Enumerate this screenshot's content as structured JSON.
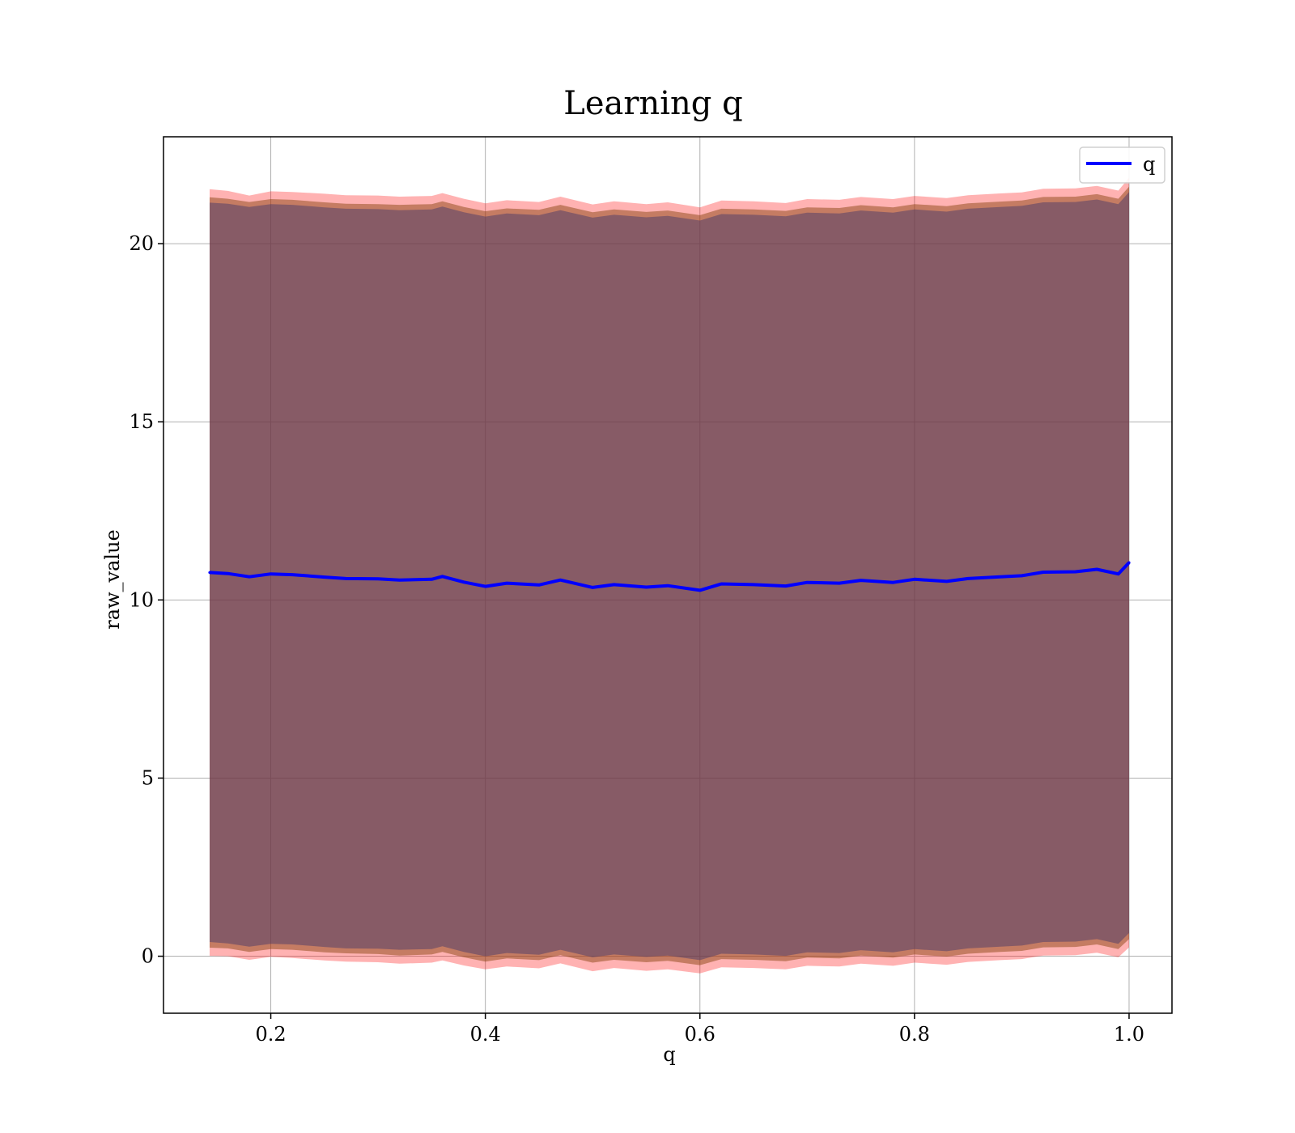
{
  "chart_data": {
    "type": "area",
    "title": "Learning q",
    "xlabel": "q",
    "ylabel": "raw_value",
    "xlim": [
      0.1,
      1.04
    ],
    "ylim": [
      -1.6,
      23.0
    ],
    "x_ticks": [
      0.2,
      0.4,
      0.6,
      0.8,
      1.0
    ],
    "x_tick_labels": [
      "0.2",
      "0.4",
      "0.6",
      "0.8",
      "1.0"
    ],
    "y_ticks": [
      0,
      5,
      10,
      15,
      20
    ],
    "y_tick_labels": [
      "0",
      "5",
      "10",
      "15",
      "20"
    ],
    "grid": true,
    "legend": {
      "position": "top-right",
      "entries": [
        "q"
      ]
    },
    "x": [
      0.143,
      0.16,
      0.18,
      0.2,
      0.22,
      0.25,
      0.27,
      0.3,
      0.32,
      0.35,
      0.36,
      0.38,
      0.4,
      0.42,
      0.45,
      0.47,
      0.5,
      0.52,
      0.55,
      0.57,
      0.6,
      0.62,
      0.65,
      0.68,
      0.7,
      0.73,
      0.75,
      0.78,
      0.8,
      0.83,
      0.85,
      0.88,
      0.9,
      0.92,
      0.95,
      0.97,
      0.99,
      1.0
    ],
    "series": [
      {
        "name": "q",
        "color": "#0000ff",
        "values": [
          10.77,
          10.74,
          10.65,
          10.73,
          10.71,
          10.64,
          10.6,
          10.59,
          10.56,
          10.58,
          10.66,
          10.5,
          10.38,
          10.47,
          10.42,
          10.56,
          10.35,
          10.43,
          10.36,
          10.4,
          10.27,
          10.45,
          10.43,
          10.39,
          10.49,
          10.47,
          10.55,
          10.49,
          10.58,
          10.52,
          10.6,
          10.65,
          10.68,
          10.78,
          10.79,
          10.86,
          10.73,
          11.05
        ]
      }
    ],
    "bands": [
      {
        "color": "#ff0000",
        "opacity": 0.3,
        "lower": [
          0.01,
          0.0,
          -0.1,
          -0.02,
          -0.05,
          -0.12,
          -0.15,
          -0.17,
          -0.21,
          -0.18,
          -0.12,
          -0.26,
          -0.37,
          -0.29,
          -0.34,
          -0.2,
          -0.42,
          -0.33,
          -0.41,
          -0.37,
          -0.48,
          -0.31,
          -0.33,
          -0.37,
          -0.27,
          -0.29,
          -0.21,
          -0.27,
          -0.18,
          -0.24,
          -0.16,
          -0.11,
          -0.08,
          0.02,
          0.03,
          0.1,
          -0.03,
          0.25
        ],
        "upper": [
          21.53,
          21.48,
          21.35,
          21.47,
          21.45,
          21.4,
          21.36,
          21.35,
          21.32,
          21.34,
          21.42,
          21.26,
          21.13,
          21.22,
          21.17,
          21.32,
          21.1,
          21.19,
          21.11,
          21.16,
          21.02,
          21.21,
          21.19,
          21.14,
          21.25,
          21.23,
          21.31,
          21.25,
          21.34,
          21.28,
          21.36,
          21.41,
          21.44,
          21.54,
          21.55,
          21.62,
          21.49,
          21.85
        ]
      },
      {
        "color": "#8b4513",
        "opacity": 0.5,
        "lower": [
          0.24,
          0.22,
          0.12,
          0.2,
          0.18,
          0.11,
          0.08,
          0.06,
          0.02,
          0.05,
          0.12,
          -0.03,
          -0.15,
          -0.06,
          -0.11,
          0.03,
          -0.18,
          -0.1,
          -0.17,
          -0.13,
          -0.25,
          -0.08,
          -0.1,
          -0.14,
          -0.04,
          -0.06,
          0.02,
          -0.04,
          0.05,
          -0.01,
          0.07,
          0.12,
          0.15,
          0.25,
          0.26,
          0.33,
          0.2,
          0.48
        ],
        "upper": [
          21.3,
          21.26,
          21.17,
          21.25,
          21.23,
          21.16,
          21.12,
          21.11,
          21.09,
          21.11,
          21.19,
          21.03,
          20.91,
          20.99,
          20.95,
          21.09,
          20.88,
          20.96,
          20.89,
          20.93,
          20.8,
          20.98,
          20.96,
          20.92,
          21.02,
          21.0,
          21.08,
          21.02,
          21.11,
          21.05,
          21.13,
          21.18,
          21.21,
          21.31,
          21.32,
          21.39,
          21.26,
          21.6
        ]
      },
      {
        "color": "#4a3a6a",
        "opacity": 0.5,
        "lower": [
          0.4,
          0.36,
          0.27,
          0.35,
          0.33,
          0.26,
          0.22,
          0.21,
          0.18,
          0.2,
          0.28,
          0.12,
          0.0,
          0.09,
          0.04,
          0.18,
          -0.03,
          0.05,
          -0.02,
          0.02,
          -0.11,
          0.07,
          0.05,
          0.01,
          0.11,
          0.09,
          0.17,
          0.11,
          0.2,
          0.14,
          0.22,
          0.27,
          0.3,
          0.4,
          0.41,
          0.48,
          0.35,
          0.65
        ],
        "upper": [
          21.15,
          21.12,
          21.03,
          21.11,
          21.09,
          21.02,
          20.98,
          20.97,
          20.94,
          20.96,
          21.04,
          20.88,
          20.76,
          20.85,
          20.8,
          20.94,
          20.73,
          20.81,
          20.74,
          20.78,
          20.65,
          20.83,
          20.81,
          20.77,
          20.87,
          20.85,
          20.93,
          20.87,
          20.96,
          20.9,
          20.98,
          21.03,
          21.06,
          21.16,
          21.17,
          21.24,
          21.11,
          21.45
        ]
      }
    ]
  }
}
